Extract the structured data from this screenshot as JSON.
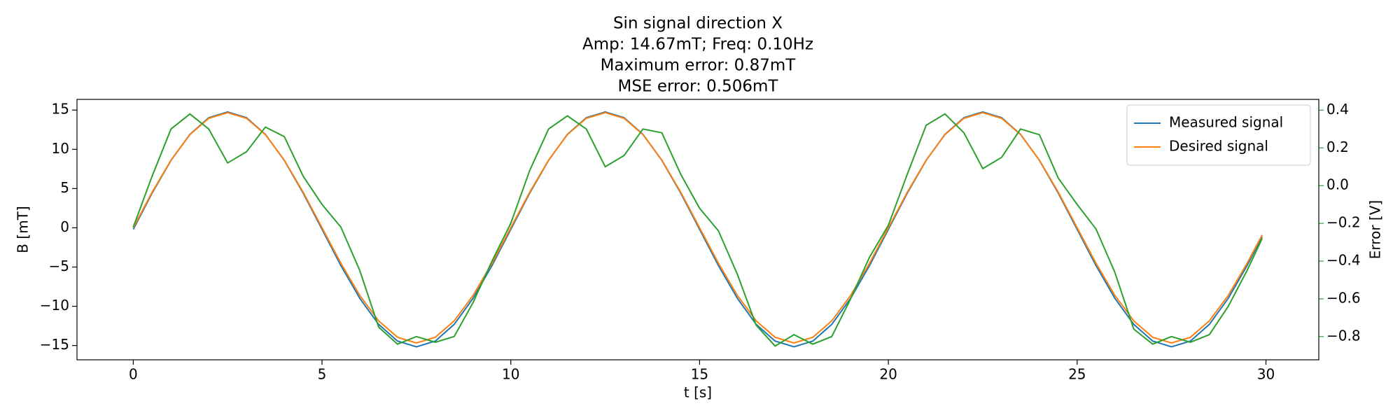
{
  "chart_data": {
    "type": "line",
    "title": [
      "Sin signal direction X",
      "Amp: 14.67mT; Freq: 0.10Hz",
      "Maximum error: 0.87mT",
      "MSE error: 0.506mT"
    ],
    "xlabel": "t [s]",
    "ylabel": "B [mT]",
    "y2label": "Error [V]",
    "y2color": "#2ca02c",
    "legend": "upper right",
    "x": [
      0,
      0.5,
      1,
      1.5,
      2,
      2.5,
      3,
      3.5,
      4,
      4.5,
      5,
      5.5,
      6,
      6.5,
      7,
      7.5,
      8,
      8.5,
      9,
      9.5,
      10,
      10.5,
      11,
      11.5,
      12,
      12.5,
      13,
      13.5,
      14,
      14.5,
      15,
      15.5,
      16,
      16.5,
      17,
      17.5,
      18,
      18.5,
      19,
      19.5,
      20,
      20.5,
      21,
      21.5,
      22,
      22.5,
      23,
      23.5,
      24,
      24.5,
      25,
      25.5,
      26,
      26.5,
      27,
      27.5,
      28,
      28.5,
      29,
      29.5,
      29.9
    ],
    "series": [
      {
        "name": "Measured signal",
        "color": "#1f77b4",
        "values": [
          -0.2,
          4.42,
          8.59,
          11.91,
          14.03,
          14.76,
          14.03,
          11.91,
          8.59,
          4.42,
          -0.2,
          -4.82,
          -8.99,
          -12.31,
          -14.43,
          -15.16,
          -14.43,
          -12.31,
          -8.99,
          -4.82,
          -0.2,
          4.42,
          8.59,
          11.91,
          14.03,
          14.76,
          14.03,
          11.91,
          8.59,
          4.42,
          -0.2,
          -4.82,
          -8.99,
          -12.31,
          -14.43,
          -15.16,
          -14.43,
          -12.31,
          -8.99,
          -4.82,
          -0.2,
          4.42,
          8.59,
          11.91,
          14.03,
          14.76,
          14.03,
          11.91,
          8.59,
          4.42,
          -0.2,
          -4.82,
          -8.99,
          -12.31,
          -14.43,
          -15.16,
          -14.43,
          -12.31,
          -8.99,
          -4.82,
          -1.14
        ]
      },
      {
        "name": "Desired signal",
        "color": "#ff7f0e",
        "values": [
          0,
          4.53,
          8.62,
          11.87,
          13.95,
          14.67,
          13.95,
          11.87,
          8.62,
          4.53,
          0,
          -4.53,
          -8.62,
          -11.87,
          -13.95,
          -14.67,
          -13.95,
          -11.87,
          -8.62,
          -4.53,
          0,
          4.53,
          8.62,
          11.87,
          13.95,
          14.67,
          13.95,
          11.87,
          8.62,
          4.53,
          0,
          -4.53,
          -8.62,
          -11.87,
          -13.95,
          -14.67,
          -13.95,
          -11.87,
          -8.62,
          -4.53,
          0,
          4.53,
          8.62,
          11.87,
          13.95,
          14.67,
          13.95,
          11.87,
          8.62,
          4.53,
          0,
          -4.53,
          -8.62,
          -11.87,
          -13.95,
          -14.67,
          -13.95,
          -11.87,
          -8.62,
          -4.53,
          -0.92
        ]
      },
      {
        "axis": "y2",
        "color": "#2ca02c",
        "values": [
          -0.22,
          0.05,
          0.3,
          0.38,
          0.3,
          0.12,
          0.18,
          0.31,
          0.26,
          0.05,
          -0.1,
          -0.22,
          -0.45,
          -0.75,
          -0.84,
          -0.8,
          -0.83,
          -0.8,
          -0.62,
          -0.4,
          -0.2,
          0.08,
          0.3,
          0.37,
          0.3,
          0.1,
          0.16,
          0.3,
          0.28,
          0.06,
          -0.12,
          -0.24,
          -0.47,
          -0.74,
          -0.85,
          -0.79,
          -0.84,
          -0.8,
          -0.6,
          -0.38,
          -0.21,
          0.06,
          0.32,
          0.38,
          0.28,
          0.09,
          0.15,
          0.3,
          0.27,
          0.04,
          -0.1,
          -0.23,
          -0.46,
          -0.76,
          -0.84,
          -0.8,
          -0.83,
          -0.79,
          -0.64,
          -0.45,
          -0.28
        ]
      }
    ],
    "xlim": [
      -1.49,
      31.4
    ],
    "xticks": [
      0,
      5,
      10,
      15,
      20,
      25,
      30
    ],
    "ylim": [
      -16.82,
      16.36
    ],
    "yticks": [
      {
        "value": -15,
        "label": "−15"
      },
      {
        "value": -10,
        "label": "−10"
      },
      {
        "value": -5,
        "label": "−5"
      },
      0,
      5,
      10,
      15
    ],
    "y2lim": [
      -0.923,
      0.457
    ],
    "y2ticks": [
      {
        "value": -0.8,
        "label": "−0.8"
      },
      {
        "value": -0.6,
        "label": "−0.6"
      },
      {
        "value": -0.4,
        "label": "−0.4"
      },
      {
        "value": -0.2,
        "label": "−0.2"
      },
      {
        "value": 0,
        "label": "0.0"
      },
      0.2,
      0.4
    ]
  }
}
